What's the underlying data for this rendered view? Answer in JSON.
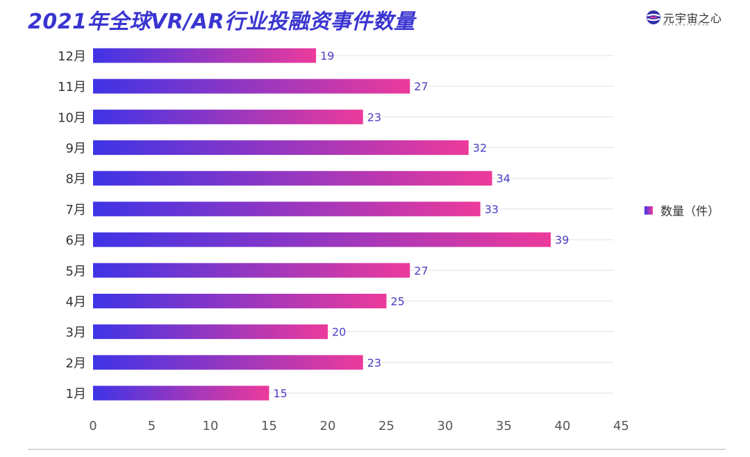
{
  "header": {
    "title": "2021年全球VR/AR行业投融资事件数量",
    "logo_text": "元宇宙之心",
    "logo_subtext": "MetaverseHub"
  },
  "colors": {
    "title": "#3a35d0",
    "bar_start": "#3f34e6",
    "bar_end": "#ec3a9b",
    "data_label": "#4a3fc4",
    "grid": "#e2e2e2",
    "axis_text": "#333333"
  },
  "chart_data": {
    "type": "bar",
    "orientation": "horizontal",
    "categories": [
      "1月",
      "2月",
      "3月",
      "4月",
      "5月",
      "6月",
      "7月",
      "8月",
      "9月",
      "10月",
      "11月",
      "12月"
    ],
    "series": [
      {
        "name": "数量（件）",
        "values": [
          15,
          23,
          20,
          25,
          27,
          39,
          33,
          34,
          32,
          23,
          27,
          19
        ]
      }
    ],
    "xlim": [
      0,
      45
    ],
    "x_ticks": [
      "0",
      "5",
      "10",
      "15",
      "20",
      "25",
      "30",
      "35",
      "40",
      "45"
    ],
    "grid": true,
    "legend_position": "right"
  }
}
